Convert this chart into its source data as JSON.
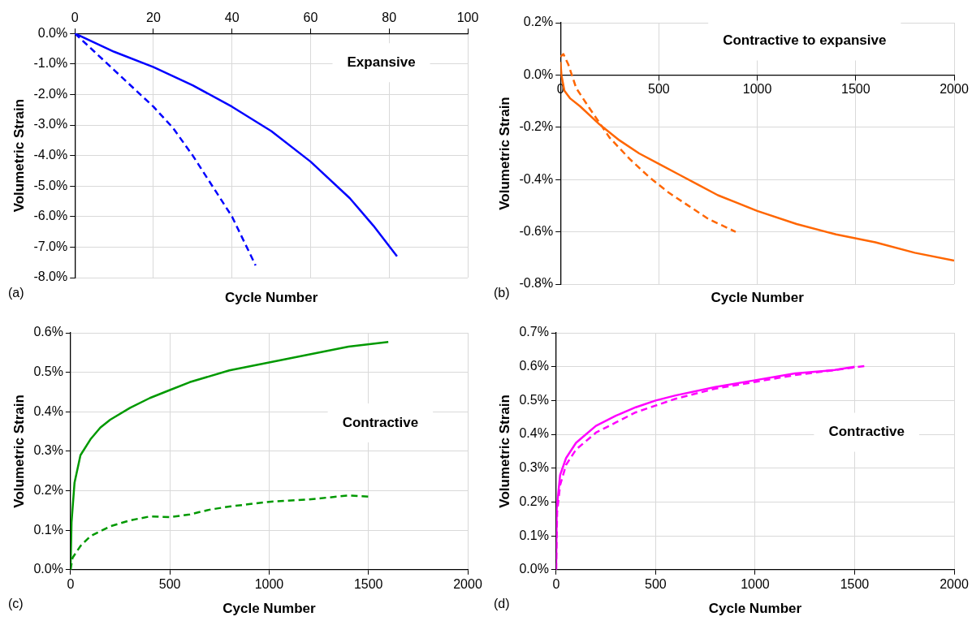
{
  "chart_data": [
    {
      "type": "line",
      "xlabel": "Cycle Number",
      "ylabel": "Volumetric Strain",
      "annotations": [
        "(a)",
        "Expansive"
      ],
      "grid": true,
      "marker": "none",
      "xlim": [
        0,
        100
      ],
      "xticks": [
        0,
        20,
        40,
        60,
        80,
        100
      ],
      "ylim": [
        -8,
        0
      ],
      "yticks": [
        {
          "value": 0,
          "label": "0.0%"
        },
        {
          "value": -1,
          "label": "-1.0%"
        },
        {
          "value": -2,
          "label": "-2.0%"
        },
        {
          "value": -3,
          "label": "-3.0%"
        },
        {
          "value": -4,
          "label": "-4.0%"
        },
        {
          "value": -5,
          "label": "-5.0%"
        },
        {
          "value": -6,
          "label": "-6.0%"
        },
        {
          "value": -7,
          "label": "-7.0%"
        },
        {
          "value": -8,
          "label": "-8.0%"
        }
      ],
      "series": [
        {
          "color": "#0000ff",
          "line_style": "solid",
          "x": [
            0,
            10,
            20,
            30,
            40,
            50,
            60,
            70,
            76,
            82
          ],
          "values": [
            0,
            -0.6,
            -1.1,
            -1.7,
            -2.4,
            -3.2,
            -4.2,
            -5.4,
            -6.3,
            -7.3
          ]
        },
        {
          "color": "#0000ff",
          "line_style": "dashed",
          "x": [
            0,
            5,
            10,
            20,
            25,
            30,
            35,
            40,
            43,
            46
          ],
          "values": [
            0,
            -0.6,
            -1.2,
            -2.4,
            -3.1,
            -4.0,
            -5.0,
            -6.0,
            -6.8,
            -7.6
          ]
        }
      ]
    },
    {
      "type": "line",
      "xlabel": "Cycle Number",
      "ylabel": "Volumetric Strain",
      "annotations": [
        "(b)",
        "Contractive to expansive"
      ],
      "grid": true,
      "marker": "none",
      "xlim": [
        0,
        2000
      ],
      "xticks": [
        0,
        500,
        1000,
        1500,
        2000
      ],
      "ylim": [
        -0.8,
        0.2
      ],
      "yticks": [
        {
          "value": 0.2,
          "label": "0.2%"
        },
        {
          "value": 0,
          "label": "0.0%"
        },
        {
          "value": -0.2,
          "label": "-0.2%"
        },
        {
          "value": -0.4,
          "label": "-0.4%"
        },
        {
          "value": -0.6,
          "label": "-0.6%"
        },
        {
          "value": -0.8,
          "label": "-0.8%"
        }
      ],
      "series": [
        {
          "color": "#ff6600",
          "line_style": "solid",
          "x": [
            0,
            5,
            20,
            50,
            100,
            200,
            300,
            400,
            500,
            600,
            700,
            800,
            900,
            1000,
            1200,
            1400,
            1600,
            1800,
            2000
          ],
          "values": [
            0.05,
            0,
            -0.06,
            -0.09,
            -0.12,
            -0.19,
            -0.25,
            -0.3,
            -0.34,
            -0.38,
            -0.42,
            -0.46,
            -0.49,
            -0.52,
            -0.57,
            -0.61,
            -0.64,
            -0.68,
            -0.71
          ]
        },
        {
          "color": "#ff6600",
          "line_style": "dashed",
          "x": [
            0,
            15,
            40,
            80,
            150,
            250,
            350,
            450,
            550,
            650,
            750,
            890
          ],
          "values": [
            0.07,
            0.08,
            0.04,
            -0.05,
            -0.13,
            -0.24,
            -0.32,
            -0.39,
            -0.45,
            -0.5,
            -0.55,
            -0.6
          ]
        }
      ]
    },
    {
      "type": "line",
      "xlabel": "Cycle Number",
      "ylabel": "Volumetric Strain",
      "annotations": [
        "(c)",
        "Contractive"
      ],
      "grid": true,
      "marker": "none",
      "xlim": [
        0,
        2000
      ],
      "xticks": [
        0,
        500,
        1000,
        1500,
        2000
      ],
      "ylim": [
        0,
        0.6
      ],
      "yticks": [
        {
          "value": 0,
          "label": "0.0%"
        },
        {
          "value": 0.1,
          "label": "0.1%"
        },
        {
          "value": 0.2,
          "label": "0.2%"
        },
        {
          "value": 0.3,
          "label": "0.3%"
        },
        {
          "value": 0.4,
          "label": "0.4%"
        },
        {
          "value": 0.5,
          "label": "0.5%"
        },
        {
          "value": 0.6,
          "label": "0.6%"
        }
      ],
      "series": [
        {
          "color": "#009900",
          "line_style": "solid",
          "x": [
            0,
            5,
            20,
            50,
            100,
            150,
            200,
            300,
            400,
            500,
            600,
            800,
            1000,
            1200,
            1400,
            1600
          ],
          "values": [
            0,
            0.12,
            0.22,
            0.29,
            0.33,
            0.36,
            0.38,
            0.41,
            0.435,
            0.455,
            0.475,
            0.505,
            0.525,
            0.545,
            0.565,
            0.577
          ]
        },
        {
          "color": "#009900",
          "line_style": "dashed",
          "x": [
            0,
            10,
            50,
            100,
            200,
            300,
            400,
            500,
            600,
            700,
            800,
            1000,
            1200,
            1400,
            1500
          ],
          "values": [
            0,
            0.03,
            0.06,
            0.085,
            0.11,
            0.125,
            0.135,
            0.133,
            0.14,
            0.152,
            0.16,
            0.172,
            0.178,
            0.188,
            0.185
          ]
        }
      ]
    },
    {
      "type": "line",
      "xlabel": "Cycle Number",
      "ylabel": "Volumetric Strain",
      "annotations": [
        "(d)",
        "Contractive"
      ],
      "grid": true,
      "marker": "none",
      "xlim": [
        0,
        2000
      ],
      "xticks": [
        0,
        500,
        1000,
        1500,
        2000
      ],
      "ylim": [
        0,
        0.7
      ],
      "yticks": [
        {
          "value": 0,
          "label": "0.0%"
        },
        {
          "value": 0.1,
          "label": "0.1%"
        },
        {
          "value": 0.2,
          "label": "0.2%"
        },
        {
          "value": 0.3,
          "label": "0.3%"
        },
        {
          "value": 0.4,
          "label": "0.4%"
        },
        {
          "value": 0.5,
          "label": "0.5%"
        },
        {
          "value": 0.6,
          "label": "0.6%"
        },
        {
          "value": 0.7,
          "label": "0.7%"
        }
      ],
      "series": [
        {
          "color": "#ff00ff",
          "line_style": "solid",
          "x": [
            0,
            3,
            20,
            50,
            100,
            150,
            200,
            300,
            400,
            500,
            600,
            800,
            1000,
            1200,
            1400,
            1500
          ],
          "values": [
            0,
            0.18,
            0.28,
            0.33,
            0.375,
            0.4,
            0.425,
            0.455,
            0.48,
            0.5,
            0.515,
            0.54,
            0.56,
            0.58,
            0.59,
            0.6
          ]
        },
        {
          "color": "#ff00ff",
          "line_style": "dashed",
          "x": [
            0,
            5,
            20,
            50,
            100,
            200,
            300,
            400,
            500,
            600,
            800,
            1000,
            1200,
            1400,
            1550
          ],
          "values": [
            0,
            0.17,
            0.25,
            0.31,
            0.355,
            0.405,
            0.435,
            0.465,
            0.485,
            0.505,
            0.535,
            0.555,
            0.575,
            0.59,
            0.602
          ]
        }
      ]
    }
  ]
}
